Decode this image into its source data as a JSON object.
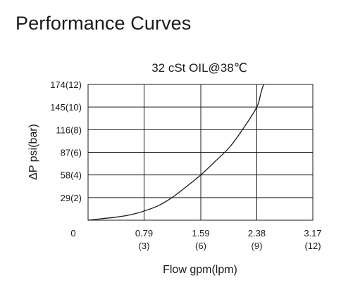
{
  "page": {
    "title": "Performance Curves"
  },
  "chart_data": {
    "type": "line",
    "title": "32 cSt OIL@38℃",
    "xlabel": "Flow gpm(lpm)",
    "ylabel": "ΔP psi(bar)",
    "xlim": [
      0,
      3.17
    ],
    "ylim": [
      0,
      174
    ],
    "grid": true,
    "x_ticks": [
      {
        "value": 0,
        "label": "0",
        "sublabel": ""
      },
      {
        "value": 0.79,
        "label": "0.79",
        "sublabel": "(3)"
      },
      {
        "value": 1.59,
        "label": "1.59",
        "sublabel": "(6)"
      },
      {
        "value": 2.38,
        "label": "2.38",
        "sublabel": "(9)"
      },
      {
        "value": 3.17,
        "label": "3.17",
        "sublabel": "(12)"
      }
    ],
    "y_ticks": [
      {
        "value": 29,
        "label": "29(2)"
      },
      {
        "value": 58,
        "label": "58(4)"
      },
      {
        "value": 87,
        "label": "87(6)"
      },
      {
        "value": 116,
        "label": "116(8)"
      },
      {
        "value": 145,
        "label": "145(10)"
      },
      {
        "value": 174,
        "label": "174(12)"
      }
    ],
    "series": [
      {
        "x": [
          0.0,
          0.2,
          0.4,
          0.6,
          0.8,
          1.0,
          1.2,
          1.4,
          1.59,
          1.8,
          2.0,
          2.2,
          2.38,
          2.43,
          2.46,
          2.48
        ],
        "y": [
          0,
          2,
          4,
          7,
          12,
          19,
          30,
          44,
          58,
          76,
          94,
          119,
          145,
          160,
          170,
          174
        ]
      }
    ]
  }
}
